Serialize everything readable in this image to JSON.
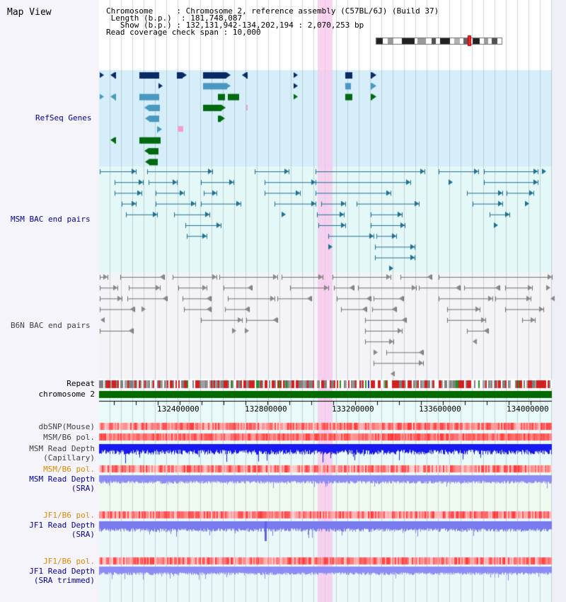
{
  "title": "Map View",
  "header": {
    "chromosome_label": "Chromosome",
    "chromosome_value": "Chromosome 2, reference assembly (C57BL/6J) (Build 37)",
    "length_label": "Length (b.p.)",
    "length_value": "181,748,087",
    "show_label": "Show (b.p.)",
    "show_value": "132,131,942-134,202,194 : 2,070,253 bp",
    "span_label": "Read coverage check span",
    "span_value": "10,000"
  },
  "tracks": {
    "refseq": "RefSeq Genes",
    "msm_bac": "MSM BAC end pairs",
    "b6n_bac": "B6N BAC end pairs",
    "repeat": "Repeat",
    "chromosome": "chromosome 2",
    "dbsnp": "dbSNP(Mouse)",
    "msm_b6_pol": "MSM/B6 pol.",
    "msm_depth_cap_1": "MSM Read Depth",
    "msm_depth_cap_2": "(Capillary)",
    "msm_b6_pol_2": "MSM/B6 pol.",
    "msm_depth_sra_1": "MSM Read Depth",
    "msm_depth_sra_2": "(SRA)",
    "jf1_b6_pol": "JF1/B6 pol.",
    "jf1_depth_1": "JF1 Read Depth",
    "jf1_depth_2": "(SRA)",
    "jf1_b6_pol_2": "JF1/B6 pol.",
    "jf1_trim_1": "JF1 Read Depth",
    "jf1_trim_2": "(SRA trimmed)"
  },
  "axis": {
    "ticks": [
      "132400000",
      "132800000",
      "133200000",
      "133600000",
      "134000000"
    ]
  },
  "colors": {
    "refseq_bg": "#d6eef9",
    "msm_bg": "#e4f8f8",
    "b6n_bg": "#f4f4f6",
    "gene_dark": "#0a2a66",
    "gene_mid": "#4a98c0",
    "gene_green": "#006a10",
    "msm_line": "#207090",
    "b6n_line": "#707070",
    "highlight": "#f8d2f0",
    "orange_label": "#e08a00",
    "blue_label": "#0000a0"
  }
}
